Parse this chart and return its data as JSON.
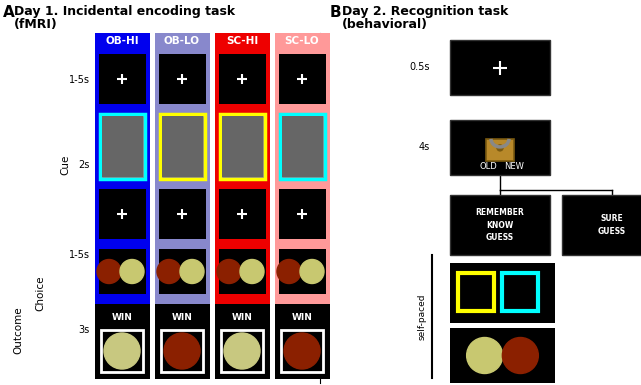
{
  "title_A": "A  Day 1. Incidental encoding task\n    (fMRI)",
  "title_B": "B   Day 2. Recognition task\n     (behavioral)",
  "col_labels": [
    "OB-HI",
    "OB-LO",
    "SC-HI",
    "SC-LO"
  ],
  "col_bg_colors": [
    "#0000EE",
    "#8888CC",
    "#EE0000",
    "#FF9999"
  ],
  "cue_inner_colors": [
    "cyan",
    "yellow",
    "yellow",
    "cyan"
  ],
  "coin_colors_choice": [
    [
      "#8B2000",
      "#C8C880"
    ],
    [
      "#8B2000",
      "#C8C880"
    ],
    [
      "#8B2000",
      "#C8C880"
    ],
    [
      "#8B2000",
      "#C8C880"
    ]
  ],
  "win_coin_colors": [
    "#C8C880",
    "#8B2000",
    "#C8C880",
    "#8B2000"
  ],
  "bg_color": "white"
}
